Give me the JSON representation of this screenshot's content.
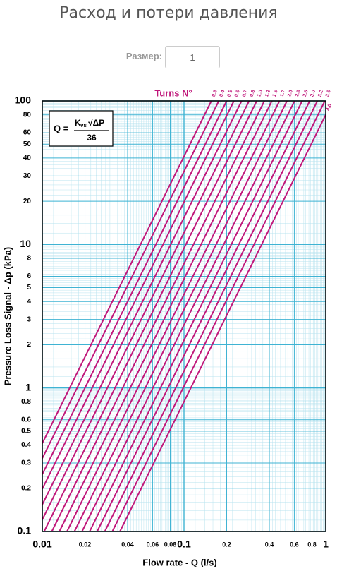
{
  "header": {
    "title": "Расход и потери давления",
    "size_label": "Размер:",
    "size_value": "1"
  },
  "chart_data": {
    "type": "line",
    "xscale": "log",
    "yscale": "log",
    "xlabel": "Flow rate - Q (l/s)",
    "ylabel": "Pressure Loss Signal  - Δp (kPa)",
    "legend_title": "Turns N°",
    "formula": {
      "lhs": "Q =",
      "k": "K",
      "sub": "vs",
      "root": "√ΔP",
      "denominator": "36"
    },
    "xlim": [
      0.01,
      1
    ],
    "ylim": [
      0.1,
      100
    ],
    "xticks": [
      0.01,
      0.02,
      0.04,
      0.06,
      0.08,
      0.1,
      0.2,
      0.4,
      0.6,
      0.8,
      1
    ],
    "yticks": [
      0.1,
      0.2,
      0.3,
      0.4,
      0.5,
      0.6,
      0.8,
      1,
      2,
      3,
      4,
      5,
      6,
      8,
      10,
      20,
      30,
      40,
      50,
      60,
      80,
      100
    ],
    "grid": true,
    "series": [
      {
        "name": "0.3",
        "color": "#c0177a",
        "x": [
          0.01,
          0.156
        ],
        "values": [
          0.411,
          100
        ]
      },
      {
        "name": "0.4",
        "color": "#c0177a",
        "x": [
          0.01,
          0.176
        ],
        "values": [
          0.323,
          100
        ]
      },
      {
        "name": "0.5",
        "color": "#c0177a",
        "x": [
          0.01,
          0.2
        ],
        "values": [
          0.25,
          100
        ]
      },
      {
        "name": "0.6",
        "color": "#c0177a",
        "x": [
          0.01,
          0.225
        ],
        "values": [
          0.198,
          100
        ]
      },
      {
        "name": "0.7",
        "color": "#c0177a",
        "x": [
          0.01,
          0.255
        ],
        "values": [
          0.154,
          100
        ]
      },
      {
        "name": "0.8",
        "color": "#c0177a",
        "x": [
          0.01,
          0.288
        ],
        "values": [
          0.121,
          100
        ]
      },
      {
        "name": "1.0",
        "color": "#c0177a",
        "x": [
          0.0103,
          0.326
        ],
        "values": [
          0.1,
          100
        ]
      },
      {
        "name": "1.2",
        "color": "#c0177a",
        "x": [
          0.01167,
          0.369
        ],
        "values": [
          0.1,
          100
        ]
      },
      {
        "name": "1.5",
        "color": "#c0177a",
        "x": [
          0.01319,
          0.417
        ],
        "values": [
          0.1,
          100
        ]
      },
      {
        "name": "1.7",
        "color": "#c0177a",
        "x": [
          0.01493,
          0.472
        ],
        "values": [
          0.1,
          100
        ]
      },
      {
        "name": "2.0",
        "color": "#c0177a",
        "x": [
          0.01685,
          0.533
        ],
        "values": [
          0.1,
          100
        ]
      },
      {
        "name": "2.3",
        "color": "#c0177a",
        "x": [
          0.01907,
          0.603
        ],
        "values": [
          0.1,
          100
        ]
      },
      {
        "name": "2.6",
        "color": "#c0177a",
        "x": [
          0.02157,
          0.682
        ],
        "values": [
          0.1,
          100
        ]
      },
      {
        "name": "3.0",
        "color": "#c0177a",
        "x": [
          0.02438,
          0.771
        ],
        "values": [
          0.1,
          100
        ]
      },
      {
        "name": "3.2",
        "color": "#c0177a",
        "x": [
          0.0276,
          0.873
        ],
        "values": [
          0.1,
          100
        ]
      },
      {
        "name": "3.6",
        "color": "#c0177a",
        "x": [
          0.0312,
          0.986
        ],
        "values": [
          0.1,
          100
        ]
      },
      {
        "name": "4.0",
        "color": "#c0177a",
        "x": [
          0.0353,
          1
        ],
        "values": [
          0.1,
          80.1
        ]
      }
    ]
  }
}
